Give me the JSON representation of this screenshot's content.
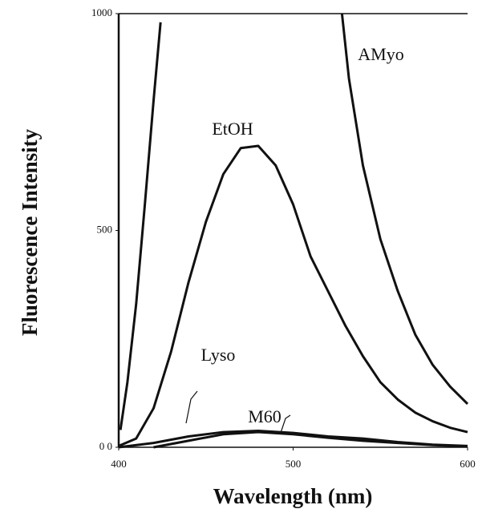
{
  "chart_data": {
    "type": "line",
    "xlabel": "Wavelength (nm)",
    "ylabel": "Fluorescence Intensity",
    "xlim": [
      400,
      600
    ],
    "ylim": [
      0,
      1000
    ],
    "xticks": [
      400,
      500,
      600
    ],
    "yticks": [
      {
        "value": 0,
        "label": "0 0"
      },
      500,
      1000
    ],
    "series": [
      {
        "name": "AMyo",
        "color": "#111111",
        "x": [
          401,
          405,
          410,
          415,
          420,
          424,
          426,
          528,
          532,
          540,
          550,
          560,
          570,
          580,
          590,
          600
        ],
        "values": [
          40,
          150,
          330,
          560,
          800,
          980,
          null,
          1000,
          850,
          650,
          480,
          360,
          260,
          190,
          140,
          100
        ]
      },
      {
        "name": "EtOH",
        "color": "#111111",
        "x": [
          400,
          410,
          420,
          430,
          440,
          450,
          460,
          470,
          480,
          490,
          500,
          510,
          520,
          530,
          540,
          550,
          560,
          570,
          580,
          590,
          600
        ],
        "values": [
          3,
          20,
          90,
          220,
          380,
          520,
          630,
          690,
          695,
          650,
          560,
          440,
          360,
          280,
          210,
          150,
          110,
          80,
          60,
          45,
          35
        ]
      },
      {
        "name": "Lyso",
        "color": "#111111",
        "x": [
          400,
          420,
          440,
          460,
          480,
          500,
          520,
          540,
          560,
          580,
          600
        ],
        "values": [
          0,
          10,
          25,
          35,
          38,
          33,
          25,
          20,
          12,
          6,
          3
        ]
      },
      {
        "name": "M60",
        "color": "#111111",
        "x": [
          420,
          440,
          460,
          480,
          500,
          520,
          540,
          560,
          580,
          600
        ],
        "values": [
          0,
          15,
          30,
          35,
          30,
          22,
          15,
          10,
          5,
          2
        ]
      }
    ]
  }
}
